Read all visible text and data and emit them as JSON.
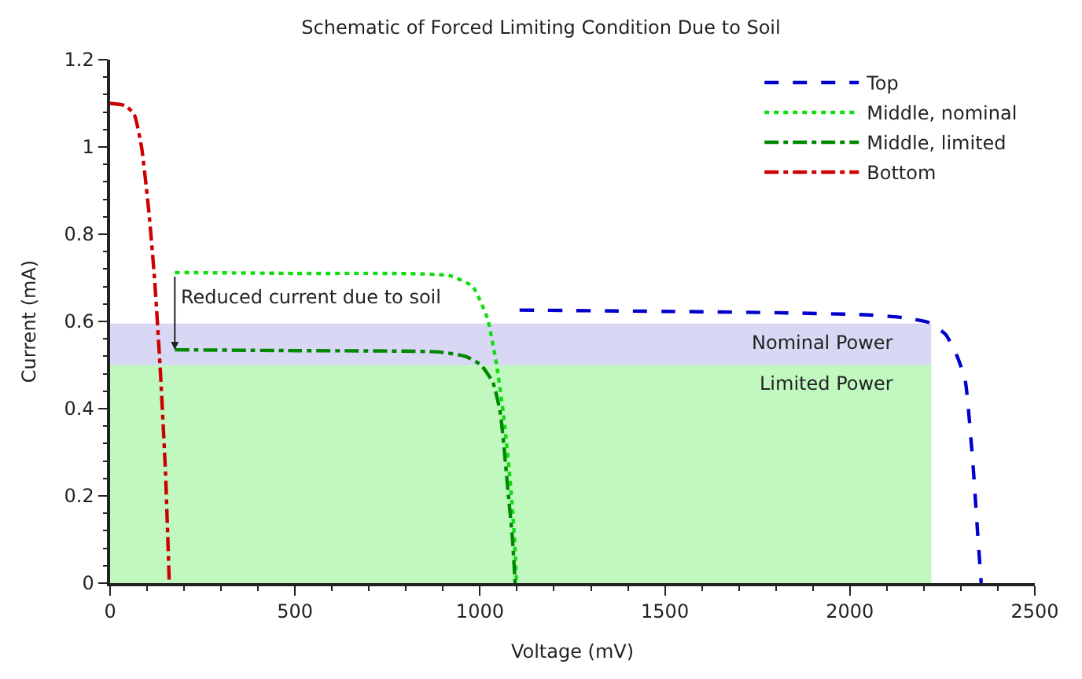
{
  "chart_data": {
    "type": "line",
    "title": "Schematic of Forced Limiting Condition Due to Soil",
    "xlabel": "Voltage (mV)",
    "ylabel": "Current (mA)",
    "xlim": [
      0,
      2500
    ],
    "xticks": [
      0,
      500,
      1000,
      1500,
      2000,
      2500
    ],
    "ylim": [
      0,
      1.2
    ],
    "yticks": [
      0,
      0.2,
      0.4,
      0.6,
      0.8,
      1,
      1.2
    ],
    "legend": "top right",
    "marker": "none",
    "series": [
      {
        "type": "area",
        "color": "#d8d8f4",
        "x": [
          0,
          2220
        ],
        "values": [
          0.595,
          0.595
        ]
      },
      {
        "type": "area",
        "color": "#c0f8c0",
        "x": [
          0,
          2220
        ],
        "values": [
          0.5,
          0.5
        ]
      },
      {
        "name": "Top",
        "color": "#0000cc",
        "line_style": "dashed",
        "x": [
          1107,
          1500,
          1800,
          2050,
          2150,
          2215,
          2259,
          2290,
          2312,
          2333,
          2345,
          2355
        ],
        "values": [
          0.626,
          0.623,
          0.62,
          0.615,
          0.608,
          0.597,
          0.57,
          0.52,
          0.464,
          0.27,
          0.12,
          0
        ]
      },
      {
        "name": "Middle, nominal",
        "color": "#11dd11",
        "line_style": "dotted",
        "x": [
          175,
          500,
          917,
          980,
          1020,
          1045,
          1063,
          1080,
          1092,
          1099
        ],
        "values": [
          0.712,
          0.71,
          0.705,
          0.68,
          0.607,
          0.5,
          0.39,
          0.25,
          0.12,
          0
        ]
      },
      {
        "name": "Middle, limited",
        "color": "#008800",
        "line_style": "dashdot",
        "x": [
          175,
          500,
          888,
          960,
          1003,
          1035,
          1055,
          1077,
          1088,
          1095
        ],
        "values": [
          0.535,
          0.533,
          0.53,
          0.52,
          0.5,
          0.46,
          0.39,
          0.2,
          0.1,
          0
        ]
      },
      {
        "name": "Bottom",
        "color": "#cc0000",
        "line_style": "dashdot",
        "x": [
          0,
          40,
          65,
          85,
          105,
          120,
          135,
          150,
          160
        ],
        "values": [
          1.1,
          1.095,
          1.075,
          1.0,
          0.85,
          0.7,
          0.5,
          0.25,
          0
        ]
      }
    ],
    "annotations": [
      {
        "text": "Reduced current due to soil",
        "x": 175,
        "y": 0.535
      },
      "Nominal Power",
      "Limited Power"
    ]
  }
}
